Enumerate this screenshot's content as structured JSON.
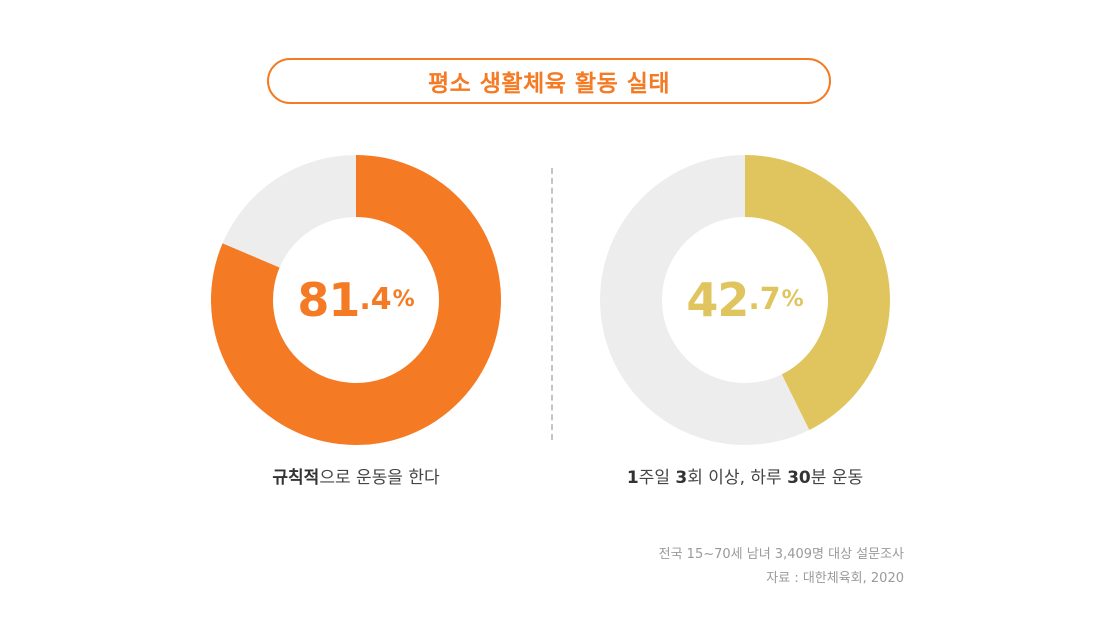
{
  "title": "평소 생활체육 활동 실태",
  "chart_data": [
    {
      "type": "pie",
      "labels": [
        "규칙적으로 운동을 한다",
        ""
      ],
      "values": [
        81.4,
        18.6
      ],
      "colors": [
        "#f47a24",
        "#ededed"
      ],
      "center_label": {
        "int": "81",
        "dec": ".4",
        "unit": "%"
      },
      "caption": {
        "bold": "규칙적",
        "rest": "으로 운동을 한다"
      }
    },
    {
      "type": "pie",
      "labels": [
        "1주일 3회 이상, 하루 30분 운동",
        ""
      ],
      "values": [
        42.7,
        57.3
      ],
      "colors": [
        "#e0c55e",
        "#ededed"
      ],
      "center_label": {
        "int": "42",
        "dec": ".7",
        "unit": "%"
      },
      "caption": {
        "p1": "1",
        "p2": "주일 ",
        "p3": "3",
        "p4": "회 이상, 하루 ",
        "p5": "30",
        "p6": "분 운동"
      }
    }
  ],
  "notes": {
    "survey": "전국 15~70세 남녀 3,409명 대상 설문조사",
    "source": "자료 : 대한체육회, 2020"
  }
}
